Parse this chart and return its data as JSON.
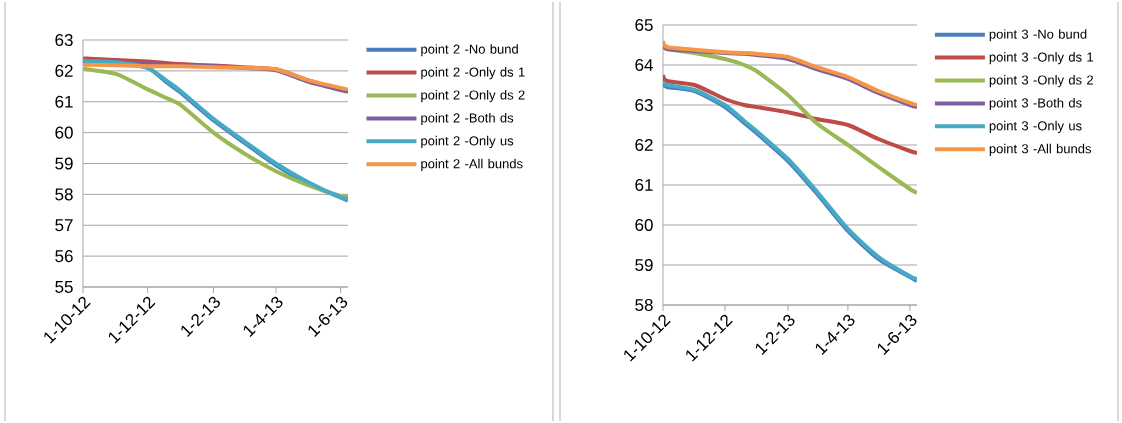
{
  "chart_data": [
    {
      "type": "line",
      "x": [
        "2012-10-01",
        "2012-10-05",
        "2012-11-01",
        "2012-12-01",
        "2012-12-20",
        "2013-01-01",
        "2013-02-01",
        "2013-03-01",
        "2013-04-01",
        "2013-05-01",
        "2013-06-01",
        "2013-06-08"
      ],
      "series": [
        {
          "name": "point 2 -No bund",
          "color": "#4a7ebb",
          "values": [
            62.3,
            62.3,
            62.25,
            62.1,
            61.6,
            61.3,
            60.4,
            59.7,
            58.95,
            58.35,
            57.9,
            57.8
          ]
        },
        {
          "name": "point 2 -Only ds 1",
          "color": "#be4b48",
          "values": [
            62.45,
            62.4,
            62.35,
            62.3,
            62.25,
            62.22,
            62.17,
            62.12,
            62.05,
            61.7,
            61.4,
            61.35
          ]
        },
        {
          "name": "point 2 -Only ds 2",
          "color": "#98b954",
          "values": [
            62.1,
            62.05,
            61.9,
            61.4,
            61.1,
            60.9,
            60.0,
            59.35,
            58.75,
            58.3,
            57.95,
            57.95
          ]
        },
        {
          "name": "point 2 -Both ds",
          "color": "#7d60a0",
          "values": [
            62.3,
            62.3,
            62.27,
            62.22,
            62.2,
            62.18,
            62.15,
            62.1,
            62.02,
            61.65,
            61.38,
            61.33
          ]
        },
        {
          "name": "point 2 -Only us",
          "color": "#46aac5",
          "values": [
            62.35,
            62.32,
            62.28,
            62.1,
            61.65,
            61.35,
            60.45,
            59.75,
            59.0,
            58.4,
            57.9,
            57.85
          ]
        },
        {
          "name": "point 2 -All bunds",
          "color": "#f79646",
          "values": [
            62.2,
            62.2,
            62.18,
            62.15,
            62.15,
            62.15,
            62.12,
            62.1,
            62.05,
            61.7,
            61.45,
            61.4
          ]
        }
      ],
      "xlim": [
        "2012-10-01",
        "2013-06-08"
      ],
      "xticks": [
        {
          "value": "2012-10-01",
          "label": "1-10-12"
        },
        {
          "value": "2012-12-01",
          "label": "1-12-12"
        },
        {
          "value": "2013-02-01",
          "label": "1-2-13"
        },
        {
          "value": "2013-04-01",
          "label": "1-4-13"
        },
        {
          "value": "2013-06-01",
          "label": "1-6-13"
        }
      ],
      "ylim": [
        55,
        63
      ],
      "yticks": [
        55,
        56,
        57,
        58,
        59,
        60,
        61,
        62,
        63
      ],
      "grid": "y",
      "legend": "right"
    },
    {
      "type": "line",
      "x": [
        "2012-10-01",
        "2012-10-05",
        "2012-11-01",
        "2012-12-01",
        "2012-12-20",
        "2013-01-01",
        "2013-02-01",
        "2013-03-01",
        "2013-04-01",
        "2013-05-01",
        "2013-06-01",
        "2013-06-08"
      ],
      "series": [
        {
          "name": "point 3 -No bund",
          "color": "#4a7ebb",
          "values": [
            63.55,
            63.45,
            63.35,
            62.95,
            62.55,
            62.3,
            61.6,
            60.8,
            59.85,
            59.15,
            58.7,
            58.6
          ]
        },
        {
          "name": "point 3 -Only ds 1",
          "color": "#be4b48",
          "values": [
            63.75,
            63.6,
            63.5,
            63.15,
            63.0,
            62.95,
            62.82,
            62.65,
            62.5,
            62.15,
            61.85,
            61.8
          ]
        },
        {
          "name": "point 3 -Only ds 2",
          "color": "#98b954",
          "values": [
            64.5,
            64.4,
            64.3,
            64.15,
            64.0,
            63.85,
            63.25,
            62.55,
            62.0,
            61.45,
            60.9,
            60.8
          ]
        },
        {
          "name": "point 3 -Both ds",
          "color": "#7d60a0",
          "values": [
            64.55,
            64.4,
            64.35,
            64.3,
            64.28,
            64.25,
            64.15,
            63.9,
            63.65,
            63.3,
            63.0,
            62.95
          ]
        },
        {
          "name": "point 3 -Only us",
          "color": "#46aac5",
          "values": [
            63.6,
            63.5,
            63.38,
            63.0,
            62.6,
            62.35,
            61.65,
            60.85,
            59.9,
            59.2,
            58.72,
            58.65
          ]
        },
        {
          "name": "point 3 -All bunds",
          "color": "#f79646",
          "values": [
            64.6,
            64.45,
            64.38,
            64.32,
            64.3,
            64.28,
            64.2,
            63.95,
            63.7,
            63.35,
            63.05,
            63.0
          ]
        }
      ],
      "xlim": [
        "2012-10-01",
        "2013-06-08"
      ],
      "xticks": [
        {
          "value": "2012-10-01",
          "label": "1-10-12"
        },
        {
          "value": "2012-12-01",
          "label": "1-12-12"
        },
        {
          "value": "2013-02-01",
          "label": "1-2-13"
        },
        {
          "value": "2013-04-01",
          "label": "1-4-13"
        },
        {
          "value": "2013-06-01",
          "label": "1-6-13"
        }
      ],
      "ylim": [
        58,
        65
      ],
      "yticks": [
        58,
        59,
        60,
        61,
        62,
        63,
        64,
        65
      ],
      "grid": "y",
      "legend": "right"
    }
  ]
}
